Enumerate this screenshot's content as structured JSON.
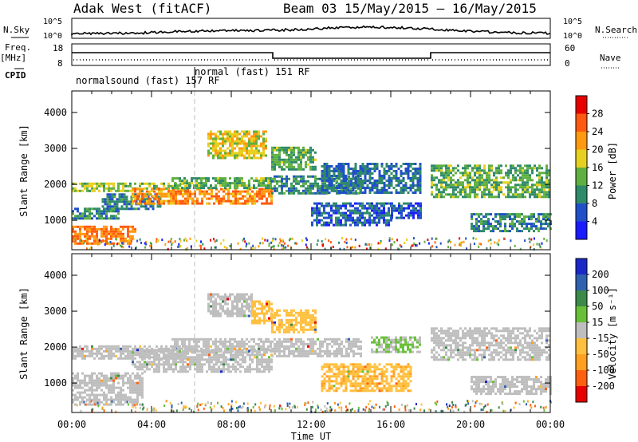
{
  "header": {
    "title": "Adak West (fitACF)",
    "beam": "Beam 03",
    "dates": "15/May/2015 – 16/May/2015"
  },
  "top_panel": {
    "nsky_label": "N.Sky",
    "nsearch_label": "N.Search",
    "freq_label": "Freq.",
    "freq_unit": "[MHz]",
    "nave_label": "Nave",
    "cpid_label": "CPID",
    "left_ticks_nsky": [
      "10^5",
      "10^0"
    ],
    "right_ticks_nsky": [
      "10^5",
      "10^0"
    ],
    "left_ticks_freq": [
      "18",
      "8"
    ],
    "right_ticks_nave": [
      "60",
      "0"
    ],
    "cpid_segments": [
      {
        "name": "normalsound (fast) 157 RF",
        "start_hr": 0,
        "end_hr": 6.2
      },
      {
        "name": "normal (fast) 151 RF",
        "start_hr": 6.2,
        "end_hr": 24
      }
    ]
  },
  "x_axis": {
    "label": "Time UT",
    "ticks": [
      "00:00",
      "04:00",
      "08:00",
      "12:00",
      "16:00",
      "20:00",
      "00:00"
    ]
  },
  "chart_data": [
    {
      "type": "heatmap",
      "title": "",
      "xlabel": "Time UT",
      "ylabel": "Slant Range [km]",
      "xlim": [
        0,
        24
      ],
      "ylim": [
        180,
        4600
      ],
      "y_ticks": [
        "1000",
        "2000",
        "3000",
        "4000"
      ],
      "colorbar": {
        "label": "Power [dB]",
        "ticks": [
          "4",
          "8",
          "12",
          "16",
          "20",
          "24",
          "28"
        ],
        "colors": [
          "#1a1aff",
          "#2050c8",
          "#2f8a6a",
          "#5fb040",
          "#e8d020",
          "#ff9a10",
          "#ff5a10",
          "#e80000"
        ],
        "range": [
          0,
          32
        ]
      },
      "echo_bands": [
        {
          "x0": 0,
          "x1": 3.2,
          "r0": 350,
          "r1": 850,
          "power": 24
        },
        {
          "x0": 0,
          "x1": 2.3,
          "r0": 1050,
          "r1": 1350,
          "power": 10
        },
        {
          "x0": 0,
          "x1": 6.0,
          "r0": 1800,
          "r1": 2050,
          "power": 15
        },
        {
          "x0": 1.5,
          "x1": 4.5,
          "r0": 1350,
          "r1": 1750,
          "power": 9
        },
        {
          "x0": 3.0,
          "x1": 10.0,
          "r0": 1450,
          "r1": 1900,
          "power": 23
        },
        {
          "x0": 5.0,
          "x1": 10.0,
          "r0": 1900,
          "r1": 2200,
          "power": 13
        },
        {
          "x0": 6.8,
          "x1": 9.8,
          "r0": 2750,
          "r1": 3500,
          "power": 18
        },
        {
          "x0": 10.0,
          "x1": 12.2,
          "r0": 2450,
          "r1": 3050,
          "power": 13
        },
        {
          "x0": 10.0,
          "x1": 14.5,
          "r0": 1750,
          "r1": 2250,
          "power": 10
        },
        {
          "x0": 12.5,
          "x1": 17.5,
          "r0": 1800,
          "r1": 2600,
          "power": 8
        },
        {
          "x0": 12.0,
          "x1": 16.0,
          "r0": 850,
          "r1": 1500,
          "power": 7
        },
        {
          "x0": 16.0,
          "x1": 17.5,
          "r0": 1100,
          "r1": 1500,
          "power": 6
        },
        {
          "x0": 18.0,
          "x1": 24.0,
          "r0": 1650,
          "r1": 2550,
          "power": 13
        },
        {
          "x0": 20.0,
          "x1": 24.0,
          "r0": 700,
          "r1": 1200,
          "power": 10
        }
      ]
    },
    {
      "type": "heatmap",
      "title": "",
      "xlabel": "Time UT",
      "ylabel": "Slant Range [km]",
      "xlim": [
        0,
        24
      ],
      "ylim": [
        180,
        4600
      ],
      "y_ticks": [
        "1000",
        "2000",
        "3000",
        "4000"
      ],
      "colorbar": {
        "label": "Velocity [m s⁻¹]",
        "ticks": [
          "200",
          "100",
          "50",
          "15",
          "-15",
          "-50",
          "-100",
          "-200"
        ],
        "colors": [
          "#1a28c8",
          "#3060b0",
          "#3c8a4a",
          "#68c038",
          "#bebebe",
          "#ffc040",
          "#ffa020",
          "#ff6010",
          "#e80000"
        ],
        "range": [
          -250,
          250
        ]
      },
      "echo_bands": [
        {
          "x0": 0,
          "x1": 3.5,
          "r0": 400,
          "r1": 1300,
          "velocity": 0
        },
        {
          "x0": 0,
          "x1": 6.0,
          "r0": 1700,
          "r1": 2050,
          "velocity": 0
        },
        {
          "x0": 3.0,
          "x1": 10.0,
          "r0": 1300,
          "r1": 1950,
          "velocity": 0
        },
        {
          "x0": 5.0,
          "x1": 10.0,
          "r0": 1900,
          "r1": 2250,
          "velocity": 0
        },
        {
          "x0": 6.8,
          "x1": 9.0,
          "r0": 2850,
          "r1": 3500,
          "velocity": 0
        },
        {
          "x0": 9.0,
          "x1": 10.0,
          "r0": 2700,
          "r1": 3300,
          "velocity": -60
        },
        {
          "x0": 10.0,
          "x1": 12.2,
          "r0": 2450,
          "r1": 3050,
          "velocity": -60
        },
        {
          "x0": 10.0,
          "x1": 14.5,
          "r0": 1750,
          "r1": 2250,
          "velocity": 0
        },
        {
          "x0": 12.5,
          "x1": 17.0,
          "r0": 800,
          "r1": 1550,
          "velocity": -70
        },
        {
          "x0": 15.0,
          "x1": 17.5,
          "r0": 1900,
          "r1": 2300,
          "velocity": 30
        },
        {
          "x0": 18.0,
          "x1": 24.0,
          "r0": 1650,
          "r1": 2550,
          "velocity": 0
        },
        {
          "x0": 20.0,
          "x1": 24.0,
          "r0": 700,
          "r1": 1200,
          "velocity": 0
        }
      ]
    }
  ]
}
